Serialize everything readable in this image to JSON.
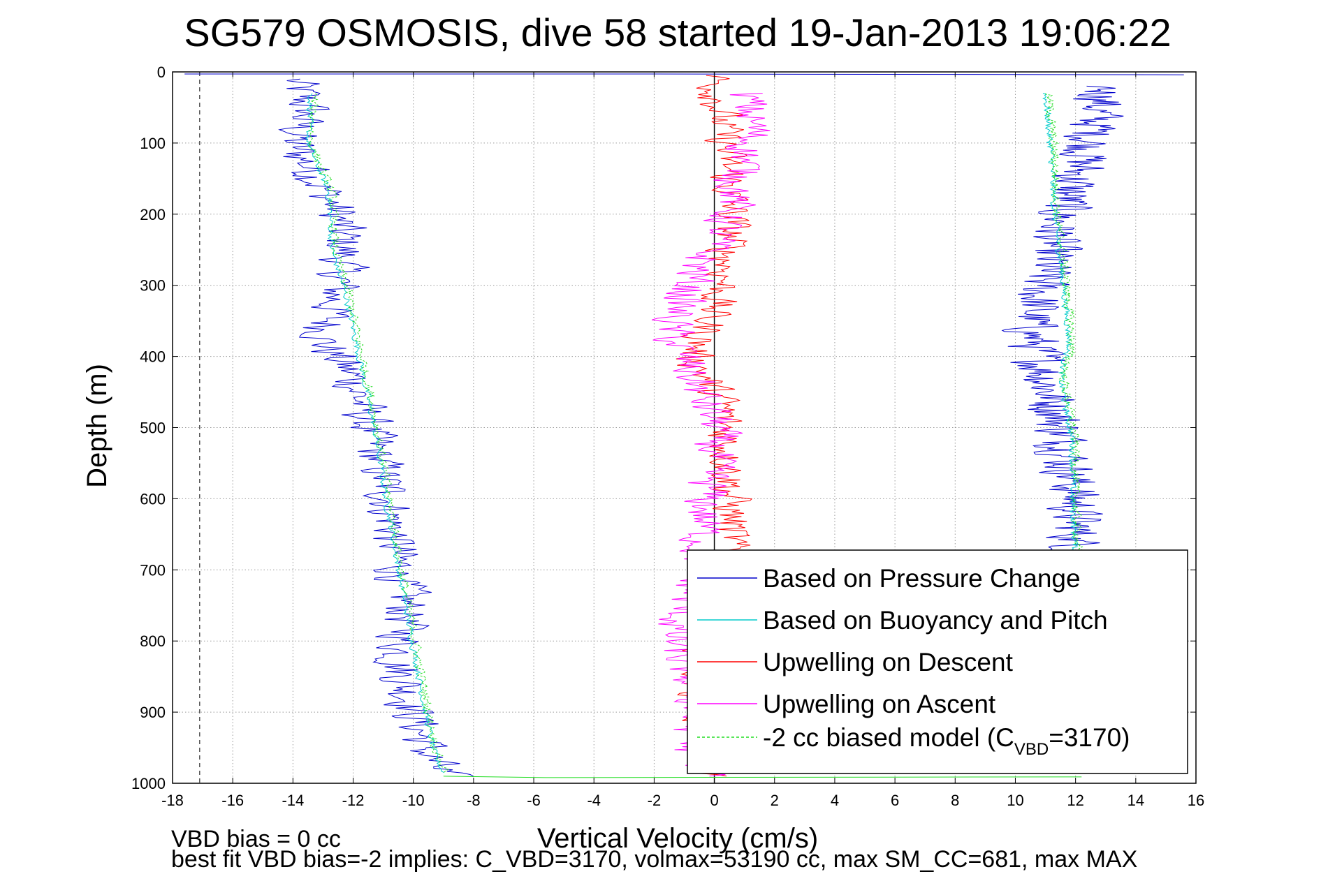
{
  "chart_data": {
    "type": "line",
    "title": "SG579 OSMOSIS, dive 58 started 19-Jan-2013 19:06:22",
    "xlabel": "Vertical Velocity (cm/s)",
    "ylabel": "Depth (m)",
    "xlim": [
      -18,
      16
    ],
    "ylim": [
      0,
      1000
    ],
    "y_reversed": true,
    "grid": true,
    "x_ticks": [
      -18,
      -16,
      -14,
      -12,
      -10,
      -8,
      -6,
      -4,
      -2,
      0,
      2,
      4,
      6,
      8,
      10,
      12,
      14,
      16
    ],
    "y_ticks": [
      0,
      100,
      200,
      300,
      400,
      500,
      600,
      700,
      800,
      900,
      1000
    ],
    "legend_position": "bottom-right",
    "vertical_lines": [
      {
        "x": 0,
        "style": "solid",
        "color": "#000000"
      },
      {
        "x": -17.1,
        "style": "dashed",
        "color": "#555555"
      }
    ],
    "series": [
      {
        "name": "Based on Pressure Change",
        "color": "#0000cc",
        "noise": 1.1,
        "points": [
          [
            -14,
            10
          ],
          [
            -13.5,
            50
          ],
          [
            -14,
            100
          ],
          [
            -13.2,
            150
          ],
          [
            -12.5,
            200
          ],
          [
            -12.3,
            250
          ],
          [
            -12.5,
            300
          ],
          [
            -13,
            380
          ],
          [
            -12,
            430
          ],
          [
            -11.5,
            500
          ],
          [
            -10.8,
            600
          ],
          [
            -10.5,
            700
          ],
          [
            -10.2,
            760
          ],
          [
            -10.5,
            830
          ],
          [
            -10,
            900
          ],
          [
            -9.5,
            960
          ],
          [
            -9,
            990
          ]
        ],
        "noise2": 1.2,
        "points2": [
          [
            13,
            20
          ],
          [
            12.5,
            100
          ],
          [
            11.5,
            200
          ],
          [
            11,
            280
          ],
          [
            10.5,
            360
          ],
          [
            11,
            430
          ],
          [
            11.5,
            500
          ],
          [
            12,
            600
          ],
          [
            12,
            680
          ]
        ]
      },
      {
        "name": "Based on Buoyancy and Pitch",
        "color": "#00cccc",
        "noise": 0.15,
        "points": [
          [
            -13.4,
            30
          ],
          [
            -13.5,
            100
          ],
          [
            -12.8,
            170
          ],
          [
            -12.7,
            250
          ],
          [
            -12.2,
            320
          ],
          [
            -11.7,
            420
          ],
          [
            -11.3,
            500
          ],
          [
            -10.9,
            600
          ],
          [
            -10.4,
            720
          ],
          [
            -9.9,
            830
          ],
          [
            -9.6,
            900
          ],
          [
            -9.3,
            960
          ],
          [
            -9,
            985
          ]
        ],
        "noise2": 0.15,
        "points2": [
          [
            11,
            30
          ],
          [
            11.2,
            120
          ],
          [
            11.3,
            200
          ],
          [
            11.6,
            300
          ],
          [
            11.8,
            380
          ],
          [
            11.5,
            430
          ],
          [
            11.9,
            520
          ],
          [
            11.9,
            600
          ],
          [
            12,
            690
          ]
        ]
      },
      {
        "name": "Upwelling on Descent",
        "color": "#ff0000",
        "noise": 0.9,
        "points": [
          [
            0,
            5
          ],
          [
            0.2,
            60
          ],
          [
            0.4,
            120
          ],
          [
            0.6,
            200
          ],
          [
            0.3,
            300
          ],
          [
            -0.7,
            400
          ],
          [
            0.3,
            470
          ],
          [
            0.5,
            550
          ],
          [
            0.6,
            650
          ],
          [
            -0.3,
            800
          ],
          [
            -0.5,
            900
          ],
          [
            0,
            990
          ]
        ]
      },
      {
        "name": "Upwelling on Ascent",
        "color": "#ff00ff",
        "noise": 1.0,
        "points": [
          [
            1,
            30
          ],
          [
            1.3,
            80
          ],
          [
            0.5,
            200
          ],
          [
            -0.6,
            280
          ],
          [
            -1.5,
            360
          ],
          [
            -0.7,
            430
          ],
          [
            0.1,
            500
          ],
          [
            -0.3,
            600
          ],
          [
            -0.5,
            700
          ],
          [
            -1.4,
            790
          ],
          [
            -0.6,
            880
          ],
          [
            -0.8,
            960
          ],
          [
            0,
            990
          ]
        ]
      },
      {
        "name": "-2 cc biased model (C",
        "name_sub": "VBD",
        "name_tail": "=3170)",
        "color": "#22dd22",
        "dashed": true,
        "noise": 0.2,
        "points": [
          [
            -13.3,
            30
          ],
          [
            -13.4,
            100
          ],
          [
            -12.7,
            170
          ],
          [
            -12.6,
            250
          ],
          [
            -12.1,
            320
          ],
          [
            -11.6,
            420
          ],
          [
            -11.2,
            500
          ],
          [
            -10.8,
            600
          ],
          [
            -10.3,
            720
          ],
          [
            -9.8,
            830
          ],
          [
            -9.5,
            900
          ],
          [
            -9.2,
            960
          ],
          [
            -8.9,
            985
          ]
        ],
        "noise2": 0.2,
        "points2": [
          [
            11.1,
            30
          ],
          [
            11.3,
            120
          ],
          [
            11.4,
            200
          ],
          [
            11.7,
            300
          ],
          [
            11.9,
            380
          ],
          [
            11.6,
            430
          ],
          [
            12,
            520
          ],
          [
            12,
            600
          ],
          [
            12.1,
            690
          ]
        ]
      }
    ],
    "annotations": [
      "VBD bias = 0 cc",
      "best fit VBD bias=-2 implies: C_VBD=3170, volmax=53190 cc, max SM_CC=681, max MAX"
    ]
  }
}
